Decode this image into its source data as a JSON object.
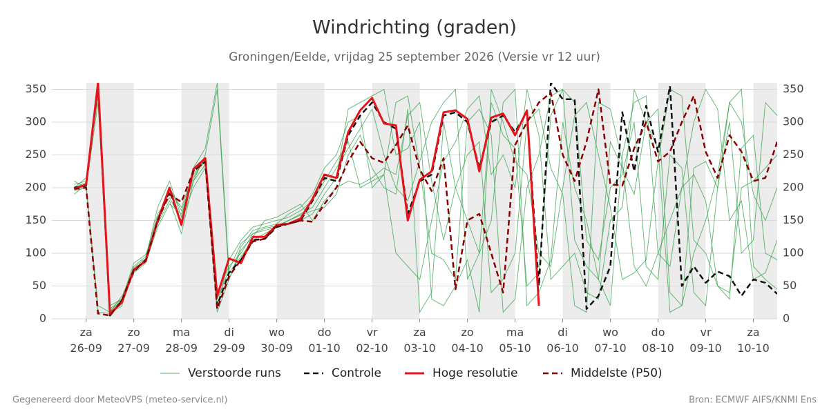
{
  "chart_data": {
    "type": "line",
    "title": "Windrichting (graden)",
    "subtitle": "Groningen/Eelde, vrijdag 25 september 2026 (Versie vr 12 uur)",
    "footer_left": "Gegenereerd door MeteoVPS (meteo-service.nl)",
    "footer_right": "Bron: ECMWF AIFS/KNMI Ens",
    "x": [
      -0.25,
      0,
      0.25,
      0.5,
      0.75,
      1,
      1.25,
      1.5,
      1.75,
      2,
      2.25,
      2.5,
      2.75,
      3,
      3.25,
      3.5,
      3.75,
      4,
      4.25,
      4.5,
      4.75,
      5,
      5.25,
      5.5,
      5.75,
      6,
      6.25,
      6.5,
      6.75,
      7,
      7.25,
      7.5,
      7.75,
      8,
      8.25,
      8.5,
      8.75,
      9,
      9.25,
      9.5,
      9.75,
      10,
      10.25,
      10.5,
      10.75,
      11,
      11.25,
      11.5,
      11.75,
      12,
      12.25,
      12.5,
      12.75,
      13,
      13.25,
      13.5,
      13.75,
      14,
      14.25,
      14.5
    ],
    "xlim": [
      -0.72,
      14.5
    ],
    "xticks": [
      {
        "value": 0,
        "label": "za 26-09"
      },
      {
        "value": 1,
        "label": "zo 27-09"
      },
      {
        "value": 2,
        "label": "ma 28-09"
      },
      {
        "value": 3,
        "label": "di 29-09"
      },
      {
        "value": 4,
        "label": "wo 30-09"
      },
      {
        "value": 5,
        "label": "do 01-10"
      },
      {
        "value": 6,
        "label": "vr 02-10"
      },
      {
        "value": 7,
        "label": "za 03-10"
      },
      {
        "value": 8,
        "label": "zo 04-10"
      },
      {
        "value": 9,
        "label": "ma 05-10"
      },
      {
        "value": 10,
        "label": "di 06-10"
      },
      {
        "value": 11,
        "label": "wo 07-10"
      },
      {
        "value": 12,
        "label": "do 08-10"
      },
      {
        "value": 13,
        "label": "vr 09-10"
      },
      {
        "value": 14,
        "label": "za 10-10"
      }
    ],
    "ylim": [
      0,
      360
    ],
    "yticks": [
      0,
      50,
      100,
      150,
      200,
      250,
      300,
      350
    ],
    "grid": true,
    "ensemble": {
      "name": "Verstoorde runs",
      "color": "#2e9e44",
      "members": [
        [
          205,
          210,
          355,
          20,
          30,
          80,
          95,
          160,
          185,
          150,
          200,
          230,
          40,
          80,
          100,
          130,
          135,
          140,
          150,
          160,
          170,
          200,
          230,
          260,
          290,
          320,
          250,
          200,
          180,
          240,
          300,
          330,
          350,
          60,
          100,
          150,
          330,
          350,
          20,
          40,
          90,
          300,
          200,
          150,
          60,
          20,
          250,
          330,
          340,
          100,
          80,
          200,
          220,
          180,
          50,
          30,
          260,
          280,
          100,
          90
        ],
        [
          195,
          200,
          20,
          10,
          35,
          70,
          85,
          140,
          175,
          160,
          210,
          250,
          350,
          60,
          110,
          135,
          140,
          145,
          160,
          170,
          190,
          230,
          250,
          300,
          310,
          200,
          220,
          330,
          340,
          230,
          100,
          90,
          60,
          300,
          320,
          280,
          10,
          30,
          200,
          250,
          340,
          350,
          120,
          80,
          60,
          270,
          230,
          190,
          300,
          320,
          40,
          20,
          100,
          150,
          220,
          330,
          350,
          80,
          60,
          45
        ],
        [
          200,
          215,
          340,
          5,
          25,
          75,
          90,
          155,
          195,
          170,
          220,
          240,
          20,
          90,
          120,
          140,
          145,
          150,
          155,
          165,
          180,
          210,
          240,
          270,
          200,
          210,
          220,
          100,
          80,
          60,
          150,
          240,
          270,
          320,
          340,
          220,
          250,
          200,
          350,
          280,
          60,
          80,
          100,
          40,
          30,
          150,
          170,
          350,
          300,
          260,
          10,
          20,
          230,
          240,
          200,
          300,
          100,
          120,
          330,
          310
        ],
        [
          190,
          205,
          10,
          8,
          20,
          78,
          92,
          170,
          210,
          155,
          230,
          260,
          360,
          70,
          95,
          120,
          130,
          140,
          145,
          150,
          160,
          190,
          215,
          320,
          330,
          340,
          350,
          250,
          260,
          300,
          30,
          20,
          50,
          90,
          10,
          350,
          300,
          240,
          220,
          100,
          80,
          200,
          310,
          330,
          250,
          170,
          60,
          70,
          90,
          240,
          350,
          340,
          120,
          100,
          50,
          40,
          200,
          210,
          230,
          250
        ],
        [
          210,
          200,
          330,
          15,
          30,
          85,
          98,
          145,
          180,
          130,
          210,
          235,
          10,
          60,
          105,
          125,
          150,
          155,
          165,
          175,
          150,
          180,
          200,
          210,
          205,
          215,
          230,
          220,
          310,
          330,
          210,
          120,
          200,
          250,
          270,
          40,
          60,
          100,
          300,
          320,
          230,
          190,
          20,
          10,
          330,
          320,
          240,
          80,
          50,
          100,
          150,
          200,
          300,
          350,
          320,
          150,
          180,
          60,
          70,
          120
        ],
        [
          200,
          208,
          350,
          12,
          28,
          72,
          88,
          150,
          200,
          165,
          215,
          245,
          30,
          75,
          115,
          130,
          138,
          142,
          150,
          158,
          165,
          170,
          190,
          250,
          280,
          230,
          200,
          190,
          320,
          10,
          40,
          300,
          200,
          150,
          100,
          330,
          280,
          260,
          50,
          70,
          310,
          350,
          330,
          120,
          90,
          200,
          220,
          300,
          80,
          60,
          250,
          230,
          40,
          20,
          200,
          330,
          300,
          190,
          150,
          200
        ]
      ]
    },
    "series": [
      {
        "name": "Controle",
        "color": "#111111",
        "dash": true,
        "width": 2.5,
        "values": [
          200,
          203,
          355,
          5,
          28,
          72,
          90,
          148,
          195,
          145,
          225,
          240,
          20,
          70,
          90,
          120,
          122,
          140,
          145,
          150,
          180,
          215,
          210,
          280,
          310,
          330,
          300,
          290,
          160,
          210,
          220,
          310,
          315,
          300,
          230,
          300,
          310,
          285,
          315,
          50,
          360,
          335,
          335,
          15,
          35,
          80,
          315,
          225,
          325,
          255,
          355,
          50,
          80,
          55,
          72,
          65,
          35,
          60,
          55,
          38
        ]
      },
      {
        "name": "Hoge resolutie",
        "color": "#e3141b",
        "dash": false,
        "width": 3,
        "values": [
          198,
          205,
          360,
          8,
          25,
          75,
          88,
          150,
          200,
          143,
          228,
          245,
          35,
          92,
          85,
          125,
          125,
          143,
          145,
          153,
          183,
          220,
          215,
          285,
          318,
          337,
          298,
          295,
          150,
          212,
          225,
          315,
          318,
          305,
          225,
          307,
          313,
          280,
          318,
          20,
          null,
          null,
          null,
          null,
          null,
          null,
          null,
          null,
          null,
          null,
          null,
          null,
          null,
          null,
          null,
          null,
          null,
          null,
          null,
          null
        ]
      },
      {
        "name": "Middelste (P50)",
        "color": "#8b0000",
        "dash": true,
        "width": 2.5,
        "values": [
          198,
          200,
          8,
          5,
          28,
          75,
          88,
          150,
          190,
          178,
          225,
          240,
          15,
          65,
          90,
          118,
          122,
          142,
          145,
          150,
          148,
          175,
          200,
          240,
          270,
          245,
          238,
          265,
          295,
          228,
          195,
          245,
          45,
          150,
          160,
          100,
          40,
          265,
          300,
          330,
          345,
          250,
          210,
          270,
          350,
          205,
          203,
          260,
          300,
          240,
          255,
          300,
          340,
          255,
          215,
          280,
          255,
          210,
          215,
          270
        ]
      }
    ]
  }
}
